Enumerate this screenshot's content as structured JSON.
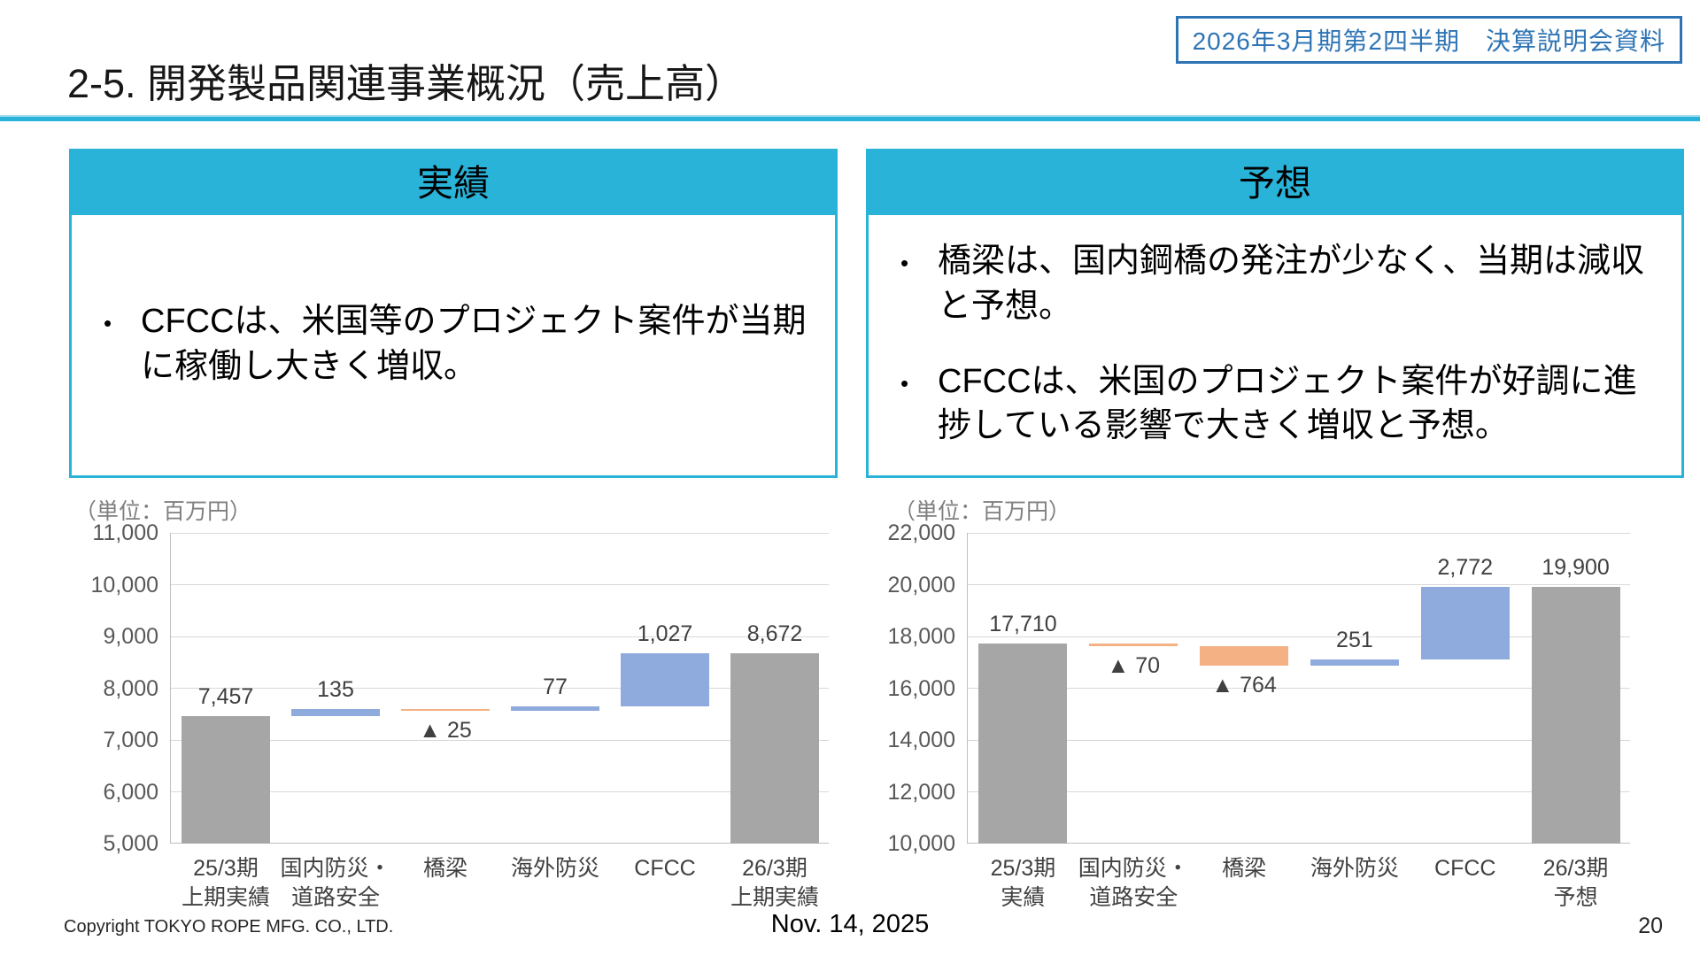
{
  "page": {
    "badge": "2026年3月期第2四半期　決算説明会資料",
    "title": "2-5. 開発製品関連事業概況（売上高）",
    "footer": {
      "copyright": "Copyright TOKYO ROPE MFG. CO., LTD.",
      "date": "Nov. 14, 2025",
      "page_number": "20"
    }
  },
  "boxes": {
    "results": {
      "header": "実績",
      "bullets": [
        "CFCCは、米国等のプロジェクト案件が当期に稼働し大きく増収。"
      ]
    },
    "forecast": {
      "header": "予想",
      "bullets": [
        "橋梁は、国内鋼橋の発注が少なく、当期は減収と予想。",
        "CFCCは、米国のプロジェクト案件が好調に進捗している影響で大きく増収と予想。"
      ]
    }
  },
  "colors": {
    "accent_cyan": "#29b3d9",
    "badge_blue": "#2e74b5",
    "bar_gray": "#a6a6a6",
    "bar_blue": "#8faadc",
    "bar_orange": "#f4b183",
    "grid_line": "#d9d9d9",
    "axis_text": "#595959",
    "label_text": "#404040"
  },
  "chart_data": [
    {
      "type": "bar",
      "subtype": "waterfall",
      "panel": "実績",
      "unit_label": "（単位：百万円）",
      "ylim": [
        5000,
        11000
      ],
      "ytick_interval": 1000,
      "ytick_labels": [
        "5,000",
        "6,000",
        "7,000",
        "8,000",
        "9,000",
        "10,000",
        "11,000"
      ],
      "grid": true,
      "categories": [
        "25/3期\n上期実績",
        "国内防災・\n道路安全",
        "橋梁",
        "海外防災",
        "CFCC",
        "26/3期\n上期実績"
      ],
      "bars": [
        {
          "name": "25/3期上期実績",
          "from": 5000,
          "to": 7457,
          "value": 7457,
          "color_key": "gray",
          "label": "7,457",
          "label_side": "above"
        },
        {
          "name": "国内防災・道路安全",
          "from": 7457,
          "to": 7592,
          "value": 135,
          "color_key": "blue",
          "label": "135",
          "label_side": "above"
        },
        {
          "name": "橋梁",
          "from": 7592,
          "to": 7567,
          "value": -25,
          "color_key": "orange",
          "label": "▲ 25",
          "label_side": "below"
        },
        {
          "name": "海外防災",
          "from": 7567,
          "to": 7644,
          "value": 77,
          "color_key": "blue",
          "label": "77",
          "label_side": "above"
        },
        {
          "name": "CFCC",
          "from": 7644,
          "to": 8671,
          "value": 1027,
          "color_key": "blue",
          "label": "1,027",
          "label_side": "above"
        },
        {
          "name": "26/3期上期実績",
          "from": 5000,
          "to": 8672,
          "value": 8672,
          "color_key": "gray",
          "label": "8,672",
          "label_side": "above"
        }
      ]
    },
    {
      "type": "bar",
      "subtype": "waterfall",
      "panel": "予想",
      "unit_label": "（単位：百万円）",
      "ylim": [
        10000,
        22000
      ],
      "ytick_interval": 2000,
      "ytick_labels": [
        "10,000",
        "12,000",
        "14,000",
        "16,000",
        "18,000",
        "20,000",
        "22,000"
      ],
      "grid": true,
      "categories": [
        "25/3期\n実績",
        "国内防災・\n道路安全",
        "橋梁",
        "海外防災",
        "CFCC",
        "26/3期\n予想"
      ],
      "bars": [
        {
          "name": "25/3期実績",
          "from": 10000,
          "to": 17710,
          "value": 17710,
          "color_key": "gray",
          "label": "17,710",
          "label_side": "above"
        },
        {
          "name": "国内防災・道路安全",
          "from": 17710,
          "to": 17640,
          "value": -70,
          "color_key": "orange",
          "label": "▲ 70",
          "label_side": "below"
        },
        {
          "name": "橋梁",
          "from": 17640,
          "to": 16876,
          "value": -764,
          "color_key": "orange",
          "label": "▲ 764",
          "label_side": "below"
        },
        {
          "name": "海外防災",
          "from": 16876,
          "to": 17127,
          "value": 251,
          "color_key": "blue",
          "label": "251",
          "label_side": "above"
        },
        {
          "name": "CFCC",
          "from": 17127,
          "to": 19899,
          "value": 2772,
          "color_key": "blue",
          "label": "2,772",
          "label_side": "above"
        },
        {
          "name": "26/3期予想",
          "from": 10000,
          "to": 19900,
          "value": 19900,
          "color_key": "gray",
          "label": "19,900",
          "label_side": "above"
        }
      ]
    }
  ]
}
